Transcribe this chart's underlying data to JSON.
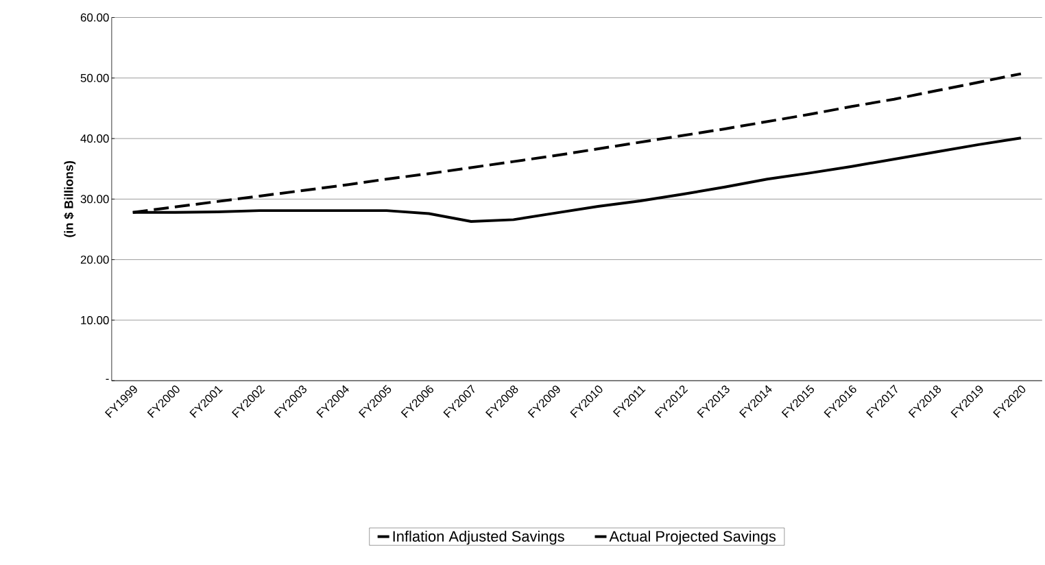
{
  "chart_data": {
    "type": "line",
    "ylabel": "(in $ Billions)",
    "categories": [
      "FY1999",
      "FY2000",
      "FY2001",
      "FY2002",
      "FY2003",
      "FY2004",
      "FY2005",
      "FY2006",
      "FY2007",
      "FY2008",
      "FY2009",
      "FY2010",
      "FY2011",
      "FY2012",
      "FY2013",
      "FY2014",
      "FY2015",
      "FY2016",
      "FY2017",
      "FY2018",
      "FY2019",
      "FY2020"
    ],
    "series": [
      {
        "name": "Inflation Adjusted Savings",
        "color": "#000000",
        "line_style": "dashed",
        "values": [
          27.8,
          28.7,
          29.6,
          30.5,
          31.4,
          32.3,
          33.3,
          34.2,
          35.2,
          36.2,
          37.2,
          38.3,
          39.4,
          40.5,
          41.6,
          42.8,
          44.0,
          45.3,
          46.5,
          47.9,
          49.3,
          50.7
        ]
      },
      {
        "name": "Actual Projected Savings",
        "color": "#000000",
        "line_style": "solid",
        "values": [
          27.8,
          27.8,
          27.9,
          28.1,
          28.1,
          28.1,
          28.1,
          27.6,
          26.3,
          26.6,
          27.7,
          28.8,
          29.7,
          30.8,
          32.0,
          33.3,
          34.3,
          35.4,
          36.6,
          37.8,
          39.0,
          40.1
        ]
      }
    ],
    "ylim": [
      0,
      60
    ],
    "yticks": [
      {
        "value": 0,
        "label": "-"
      },
      {
        "value": 10,
        "label": "10.00"
      },
      {
        "value": 20,
        "label": "20.00"
      },
      {
        "value": 30,
        "label": "30.00"
      },
      {
        "value": 40,
        "label": "40.00"
      },
      {
        "value": 50,
        "label": "50.00"
      },
      {
        "value": 60,
        "label": "60.00"
      }
    ],
    "grid": "y",
    "legend": "bottom",
    "marker": "none"
  }
}
